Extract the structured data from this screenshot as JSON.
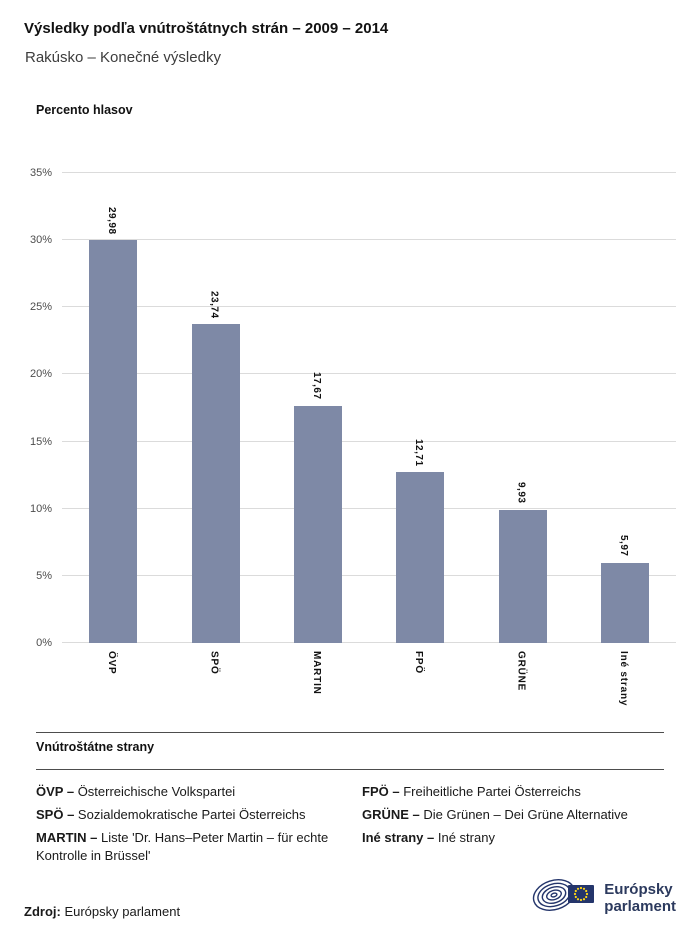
{
  "header": {
    "title": "Výsledky podľa vnútroštátnych strán – 2009 – 2014",
    "subtitle": "Rakúsko – Konečné výsledky"
  },
  "chart_data": {
    "type": "bar",
    "title": "Percento hlasov",
    "categories": [
      "ÖVP",
      "SPÖ",
      "MARTIN",
      "FPÖ",
      "GRÜNE",
      "Iné strany"
    ],
    "values": [
      29.98,
      23.74,
      17.67,
      12.71,
      9.93,
      5.97
    ],
    "value_labels": [
      "29,98",
      "23,74",
      "17,67",
      "12,71",
      "9,93",
      "5,97"
    ],
    "ylabel": "Percento hlasov",
    "xlabel": "",
    "ylim": [
      0,
      35
    ],
    "ytick_step": 5,
    "ytick_labels": [
      "0%",
      "5%",
      "10%",
      "15%",
      "20%",
      "25%",
      "30%",
      "35%"
    ],
    "grid": true,
    "legend_position": "none",
    "bar_color": "#7e89a6"
  },
  "legend": {
    "heading": "Vnútroštátne strany",
    "columns": [
      [
        {
          "term": "ÖVP –",
          "definition": "Österreichische Volkspartei"
        },
        {
          "term": "SPÖ –",
          "definition": "Sozialdemokratische Partei Österreichs"
        },
        {
          "term": "MARTIN –",
          "definition": "Liste 'Dr. Hans–Peter Martin – für echte Kontrolle in Brüssel'"
        }
      ],
      [
        {
          "term": "FPÖ –",
          "definition": "Freiheitliche Partei Österreichs"
        },
        {
          "term": "GRÜNE –",
          "definition": "Die Grünen – Dei Grüne Alternative"
        },
        {
          "term": "Iné strany –",
          "definition": "Iné strany"
        }
      ]
    ]
  },
  "footer": {
    "source_label": "Zdroj:",
    "source_value": "Európsky parlament",
    "logo_line1": "Európsky",
    "logo_line2": "parlament"
  },
  "colors": {
    "bar": "#7e89a6",
    "gridline": "#dbdbdb",
    "logo_navy": "#24356b",
    "flag_stars": "#ffd617"
  }
}
